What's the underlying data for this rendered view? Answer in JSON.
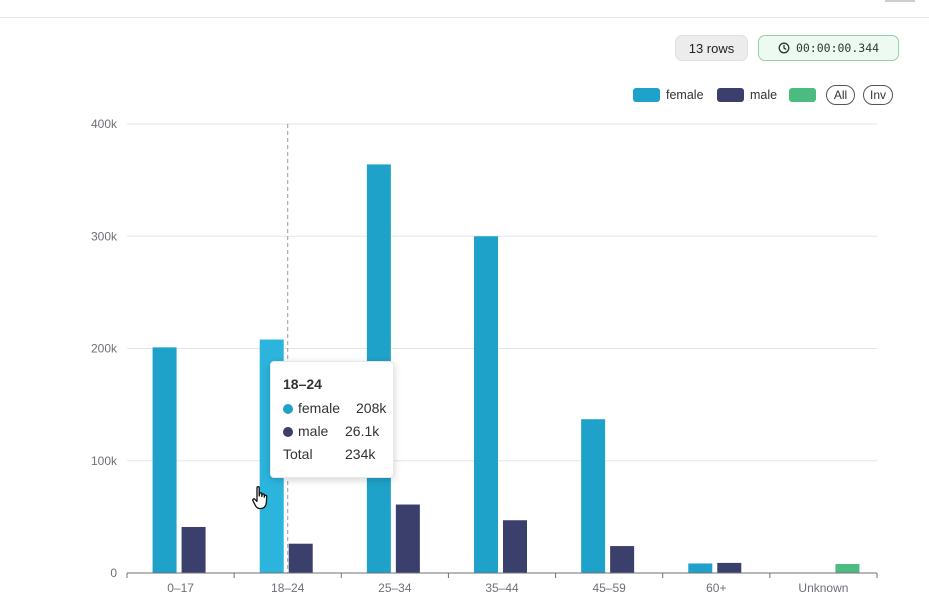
{
  "header": {
    "rows_label": "13 rows",
    "timer_label": "00:00:00.344",
    "timer_icon": "clock-icon"
  },
  "legend": {
    "items": [
      {
        "label": "female",
        "color": "#1fa2c9"
      },
      {
        "label": "male",
        "color": "#3a3f6b"
      },
      {
        "label": "",
        "color": "#4cbb7f"
      }
    ],
    "all_label": "All",
    "inv_label": "Inv"
  },
  "chart_data": {
    "type": "bar",
    "categories": [
      "0–17",
      "18–24",
      "25–34",
      "35–44",
      "45–59",
      "60+",
      "Unknown"
    ],
    "series": [
      {
        "name": "female",
        "color": "#1fa2c9",
        "values": [
          201000,
          208000,
          364000,
          300000,
          137000,
          8500,
          null
        ]
      },
      {
        "name": "male",
        "color": "#3a3f6b",
        "values": [
          41000,
          26100,
          61000,
          47000,
          24000,
          9000,
          null
        ]
      },
      {
        "name": "",
        "color": "#4cbb7f",
        "values": [
          null,
          null,
          null,
          null,
          null,
          null,
          8000
        ]
      }
    ],
    "ylim": [
      0,
      400000
    ],
    "yticks": [
      0,
      100000,
      200000,
      300000,
      400000
    ],
    "ytick_labels": [
      "0",
      "100k",
      "200k",
      "300k",
      "400k"
    ],
    "grid": true,
    "legend_position": "top-right",
    "highlight_color": "#2bb5dd",
    "tooltip": {
      "category": "18–24",
      "rows": [
        {
          "name": "female",
          "value": "208k",
          "color": "#1fa2c9"
        },
        {
          "name": "male",
          "value": "26.1k",
          "color": "#3a3f6b"
        }
      ],
      "total_label": "Total",
      "total_value": "234k"
    }
  }
}
